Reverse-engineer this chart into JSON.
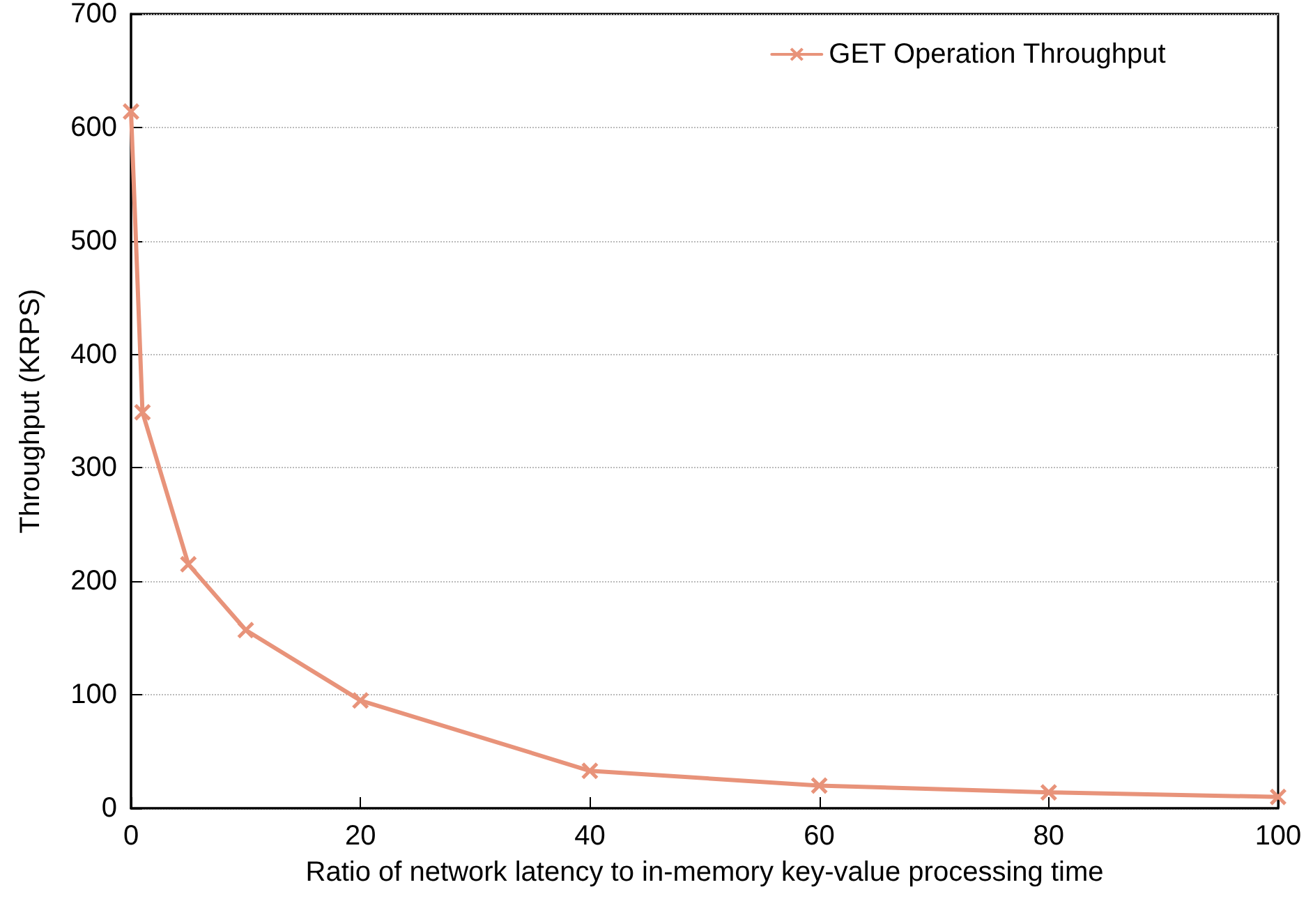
{
  "chart_data": {
    "type": "line",
    "xlabel": "Ratio of network latency to in-memory key-value processing time",
    "ylabel": "Throughput (KRPS)",
    "x": [
      0,
      1,
      5,
      10,
      20,
      40,
      60,
      80,
      100
    ],
    "series": [
      {
        "name": "GET Operation Throughput",
        "color": "#e8937a",
        "values": [
          614,
          349,
          215,
          157,
          95,
          33,
          20,
          14,
          10
        ]
      }
    ],
    "xlim": [
      0,
      100
    ],
    "xticks": [
      0,
      20,
      40,
      60,
      80,
      100
    ],
    "ylim": [
      0,
      700
    ],
    "yticks": [
      0,
      100,
      200,
      300,
      400,
      500,
      600,
      700
    ],
    "grid": "y",
    "legend": "top right",
    "marker": "cross",
    "line_style": "solid"
  }
}
